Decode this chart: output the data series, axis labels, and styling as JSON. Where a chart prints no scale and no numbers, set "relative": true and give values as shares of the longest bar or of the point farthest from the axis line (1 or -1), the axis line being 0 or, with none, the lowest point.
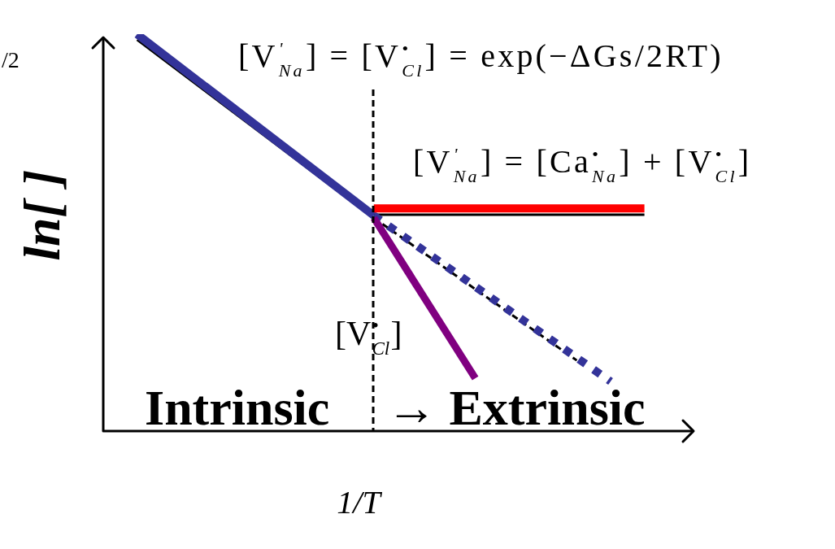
{
  "chart_data": {
    "type": "line",
    "relative": true,
    "xlabel": "1/T",
    "ylabel": "ln[ ]",
    "marker": "none",
    "annotations": [
      "/2",
      "[V$^{'}$$_{Na}$] = [V$^{•}$$_{Cl}$] = exp(−ΔGs/2RT)",
      "[V$^{'}$$_{Na}$] = [Ca$^{•}$$_{Na}$] + [V$^{•}$$_{Cl}$]",
      "[V$^{•}$$_{Cl}$]",
      "Intrinsic",
      "→ Extrinsic"
    ],
    "categories": [
      null,
      null,
      null,
      null,
      null,
      null,
      null,
      null,
      null,
      null,
      null,
      null,
      null,
      null,
      null,
      null,
      null,
      null,
      null,
      null,
      null,
      null,
      null,
      null,
      null,
      null,
      null,
      null,
      null,
      null,
      null,
      null,
      null,
      null,
      null,
      null
    ],
    "series": [
      {
        "color": "#000000",
        "values": [
          null,
          null,
          0.986,
          null,
          null,
          null,
          null,
          null,
          null,
          null,
          null,
          null,
          null,
          null,
          null,
          null,
          0.537,
          null,
          null,
          null,
          null,
          null,
          null,
          null,
          null,
          null,
          null,
          null,
          null,
          null,
          null,
          null,
          null,
          null,
          null,
          null
        ]
      },
      {
        "color": "#000000",
        "line_style": "dashed",
        "values": [
          null,
          null,
          null,
          null,
          null,
          null,
          null,
          null,
          null,
          null,
          null,
          null,
          null,
          null,
          null,
          null,
          0.537,
          null,
          null,
          null,
          null,
          null,
          null,
          null,
          null,
          null,
          null,
          null,
          0.178,
          null,
          null,
          null,
          null,
          null,
          null,
          null
        ]
      },
      {
        "color": "#000000",
        "values": [
          null,
          null,
          null,
          null,
          null,
          null,
          null,
          null,
          null,
          null,
          null,
          null,
          null,
          null,
          null,
          null,
          0.545,
          null,
          null,
          null,
          null,
          null,
          null,
          null,
          null,
          null,
          null,
          null,
          null,
          null,
          null,
          null,
          0.545,
          null,
          null,
          null
        ]
      },
      {
        "color": "#333399",
        "values": [
          null,
          null,
          1,
          null,
          null,
          null,
          null,
          null,
          null,
          null,
          null,
          null,
          null,
          null,
          null,
          null,
          0.543,
          null,
          null,
          null,
          null,
          null,
          null,
          null,
          null,
          null,
          null,
          null,
          null,
          null,
          null,
          null,
          null,
          null,
          null,
          null
        ]
      },
      {
        "color": "#333399",
        "line_style": "dashed",
        "values": [
          null,
          null,
          null,
          null,
          null,
          null,
          null,
          null,
          null,
          null,
          null,
          null,
          null,
          null,
          null,
          null,
          0.543,
          null,
          null,
          null,
          null,
          null,
          null,
          null,
          null,
          null,
          null,
          null,
          null,
          null,
          0.125,
          null,
          null,
          null,
          null,
          null
        ]
      },
      {
        "color": "#ff0000",
        "values": [
          null,
          null,
          null,
          null,
          null,
          null,
          null,
          null,
          null,
          null,
          null,
          null,
          null,
          null,
          null,
          null,
          0.561,
          null,
          null,
          null,
          null,
          null,
          null,
          null,
          null,
          null,
          null,
          null,
          null,
          null,
          null,
          null,
          0.561,
          null,
          null,
          null
        ]
      },
      {
        "color": "#800080",
        "values": [
          null,
          null,
          null,
          null,
          null,
          null,
          null,
          null,
          null,
          null,
          null,
          null,
          null,
          null,
          null,
          null,
          0.537,
          null,
          null,
          null,
          null,
          null,
          0.133,
          null,
          null,
          null,
          null,
          null,
          null,
          null,
          null,
          null,
          null,
          null,
          null,
          null
        ]
      }
    ]
  }
}
